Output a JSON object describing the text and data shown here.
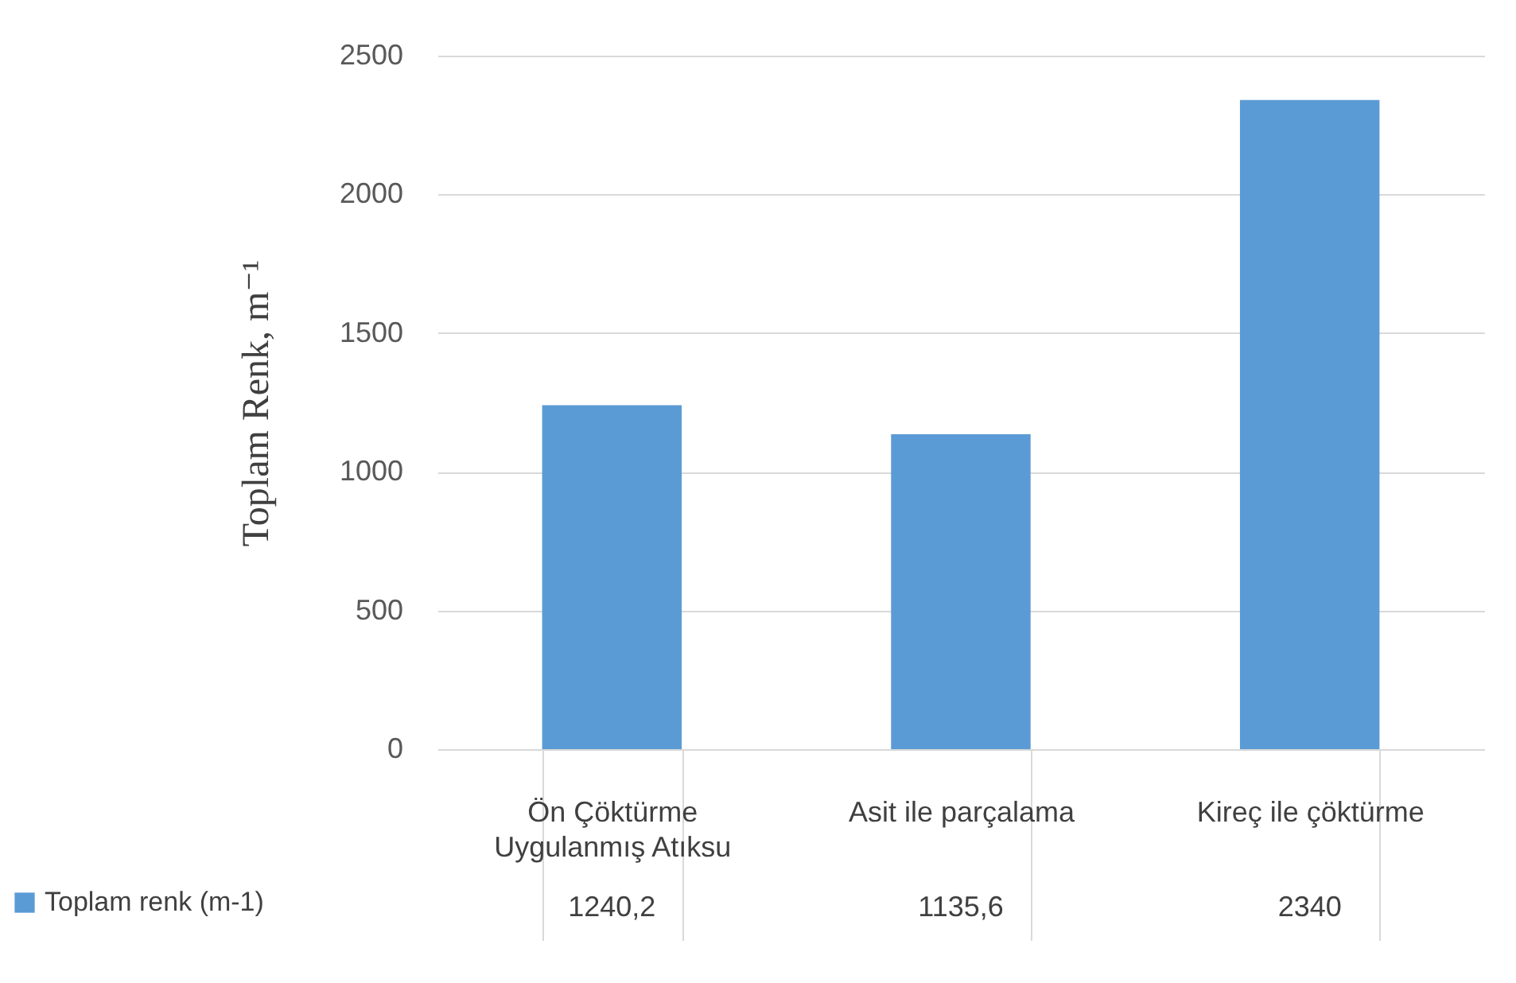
{
  "chart_data": {
    "type": "bar",
    "ylabel": "Toplam Renk, m⁻¹",
    "categories": [
      "Ön Çöktürme Uygulanmış Atıksu",
      "Asit ile parçalama",
      "Kireç ile çöktürme"
    ],
    "series": [
      {
        "name": "Toplam renk  (m-1)",
        "color": "#5b9bd5",
        "values": [
          1240.2,
          1135.6,
          2340
        ],
        "value_labels": [
          "1240,2",
          "1135,6",
          "2340"
        ]
      }
    ],
    "ylim": [
      0,
      2500
    ],
    "yticks": [
      0,
      500,
      1000,
      1500,
      2000,
      2500
    ],
    "grid": "y",
    "legend": "bottom left"
  }
}
